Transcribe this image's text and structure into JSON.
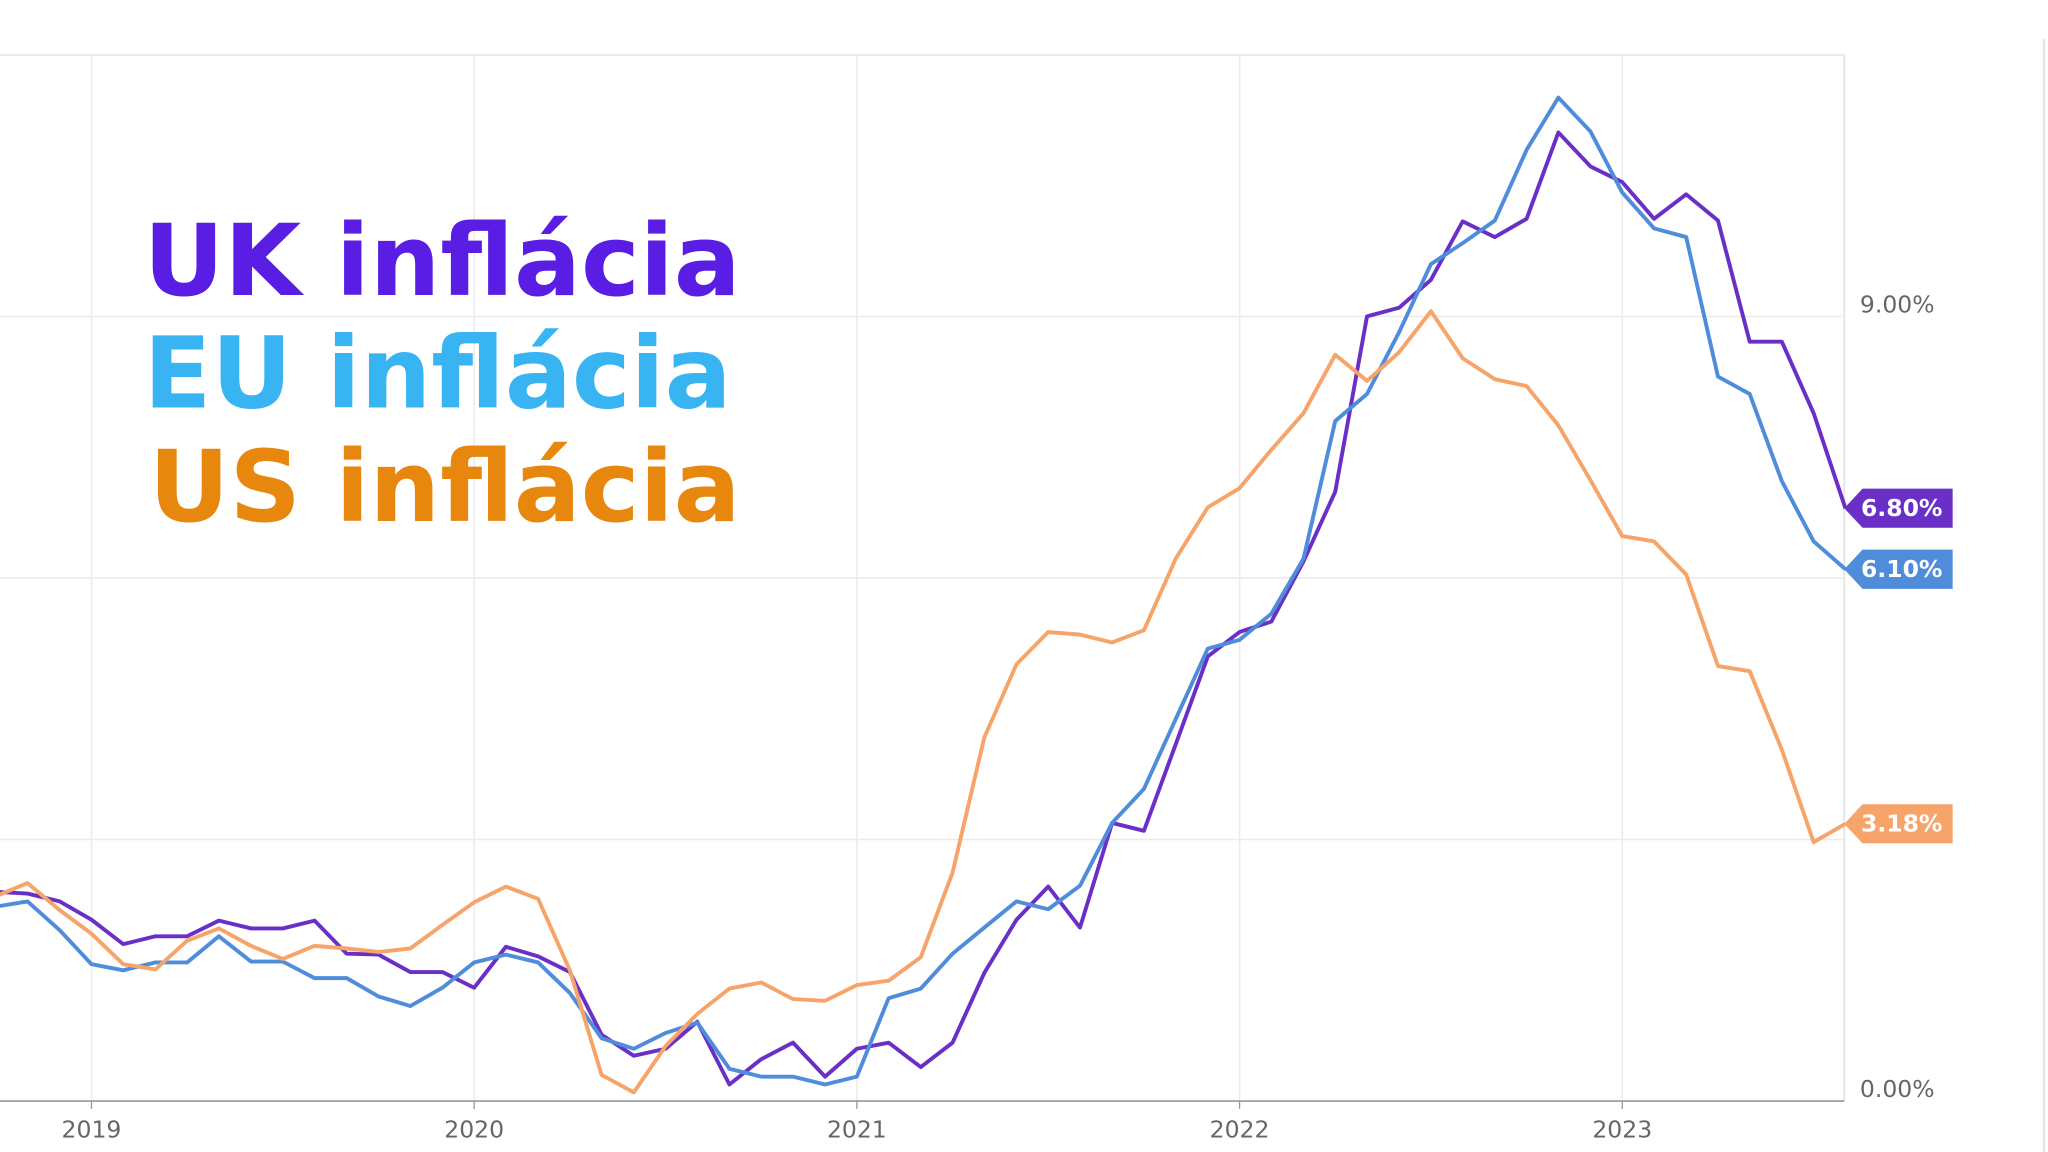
{
  "chart_data": {
    "type": "line",
    "x": [
      2018.75,
      2018.833,
      2018.917,
      2019,
      2019.083,
      2019.167,
      2019.25,
      2019.333,
      2019.417,
      2019.5,
      2019.583,
      2019.667,
      2019.75,
      2019.833,
      2019.917,
      2020,
      2020.083,
      2020.167,
      2020.25,
      2020.333,
      2020.417,
      2020.5,
      2020.583,
      2020.667,
      2020.75,
      2020.833,
      2020.917,
      2021,
      2021.083,
      2021.167,
      2021.25,
      2021.333,
      2021.417,
      2021.5,
      2021.583,
      2021.667,
      2021.75,
      2021.833,
      2021.917,
      2022,
      2022.083,
      2022.167,
      2022.25,
      2022.333,
      2022.417,
      2022.5,
      2022.583,
      2022.667,
      2022.75,
      2022.833,
      2022.917,
      2023,
      2023.083,
      2023.167,
      2023.25,
      2023.333,
      2023.417,
      2023.5,
      2023.583
    ],
    "xlim": [
      2018.761,
      2023.58
    ],
    "xticks": [
      2019,
      2020,
      2021,
      2022,
      2023
    ],
    "ylim": [
      0,
      12
    ],
    "yticks": [
      {
        "value": 0,
        "label": "0.00%"
      },
      {
        "value": 3,
        "label": null
      },
      {
        "value": 6,
        "label": null
      },
      {
        "value": 9,
        "label": "9.00%"
      },
      {
        "value": 12,
        "label": null
      }
    ],
    "grid": true,
    "series": [
      {
        "name": "UK inflácia",
        "color": "#6a2fc7",
        "legend_color": "#5a1de3",
        "end_label": "6.80%",
        "values": [
          2.4,
          2.38,
          2.29,
          2.08,
          1.8,
          1.89,
          1.89,
          2.07,
          1.98,
          1.98,
          2.07,
          1.69,
          1.68,
          1.48,
          1.48,
          1.3,
          1.77,
          1.66,
          1.48,
          0.76,
          0.52,
          0.6,
          0.91,
          0.19,
          0.48,
          0.67,
          0.28,
          0.6,
          0.67,
          0.39,
          0.67,
          1.47,
          2.08,
          2.46,
          1.99,
          3.19,
          3.1,
          4.09,
          5.1,
          5.38,
          5.5,
          6.19,
          6.99,
          9.0,
          9.1,
          9.42,
          10.09,
          9.91,
          10.12,
          11.11,
          10.72,
          10.54,
          10.12,
          10.4,
          10.1,
          8.71,
          8.71,
          7.89,
          6.8
        ]
      },
      {
        "name": "EU inflácia",
        "color": "#4f8ddb",
        "legend_color": "#39b4f3",
        "end_label": "6.10%",
        "values": [
          2.23,
          2.29,
          1.96,
          1.57,
          1.5,
          1.59,
          1.59,
          1.89,
          1.6,
          1.6,
          1.41,
          1.41,
          1.2,
          1.09,
          1.3,
          1.59,
          1.68,
          1.59,
          1.24,
          0.72,
          0.6,
          0.78,
          0.9,
          0.37,
          0.28,
          0.28,
          0.19,
          0.28,
          1.18,
          1.29,
          1.69,
          1.99,
          2.29,
          2.2,
          2.47,
          3.19,
          3.58,
          4.38,
          5.19,
          5.29,
          5.59,
          6.22,
          7.8,
          8.11,
          8.82,
          9.6,
          9.84,
          10.1,
          10.91,
          11.51,
          11.12,
          10.42,
          10.01,
          9.91,
          8.31,
          8.11,
          7.11,
          6.42,
          6.1
        ]
      },
      {
        "name": "US inflácia",
        "color": "#f7a46b",
        "legend_color": "#e8870e",
        "end_label": "3.18%",
        "values": [
          2.35,
          2.5,
          2.19,
          1.92,
          1.57,
          1.51,
          1.84,
          1.98,
          1.78,
          1.63,
          1.78,
          1.75,
          1.71,
          1.75,
          2.02,
          2.28,
          2.46,
          2.32,
          1.5,
          0.3,
          0.1,
          0.63,
          1.0,
          1.29,
          1.36,
          1.17,
          1.15,
          1.33,
          1.38,
          1.65,
          2.62,
          4.17,
          5.01,
          5.38,
          5.35,
          5.26,
          5.4,
          6.22,
          6.81,
          7.03,
          7.47,
          7.89,
          8.56,
          8.26,
          8.59,
          9.06,
          8.52,
          8.28,
          8.2,
          7.75,
          7.12,
          6.48,
          6.42,
          6.04,
          4.99,
          4.93,
          4.03,
          2.97,
          3.18
        ]
      }
    ]
  }
}
